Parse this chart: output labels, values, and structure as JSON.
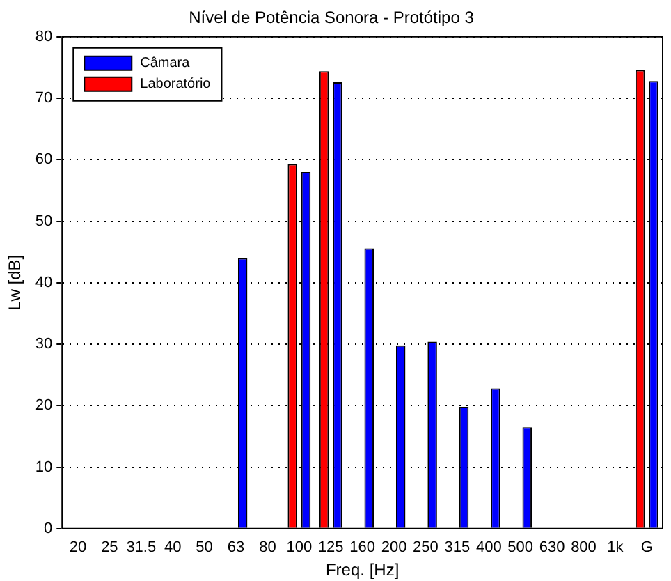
{
  "chart_data": {
    "type": "bar",
    "title": "Nível de Potência Sonora - Protótipo 3",
    "xlabel": "Freq. [Hz]",
    "ylabel": "Lw [dB]",
    "categories": [
      "20",
      "25",
      "31.5",
      "40",
      "50",
      "63",
      "80",
      "100",
      "125",
      "160",
      "200",
      "250",
      "315",
      "400",
      "500",
      "630",
      "800",
      "1k",
      "G"
    ],
    "series": [
      {
        "name": "Laboratório",
        "color": "#ff0000",
        "values": [
          null,
          null,
          null,
          null,
          null,
          null,
          null,
          59.3,
          74.4,
          null,
          null,
          null,
          null,
          null,
          null,
          null,
          null,
          null,
          74.6
        ]
      },
      {
        "name": "Câmara",
        "color": "#0000ff",
        "values": [
          null,
          null,
          null,
          null,
          null,
          44,
          null,
          58,
          72.6,
          45.6,
          29.8,
          30.4,
          19.8,
          22.8,
          16.5,
          null,
          null,
          null,
          72.8
        ]
      }
    ],
    "ylim": [
      0,
      80
    ],
    "yticks": [
      0,
      10,
      20,
      30,
      40,
      50,
      60,
      70,
      80
    ],
    "grid": "y",
    "legend": "top left"
  }
}
